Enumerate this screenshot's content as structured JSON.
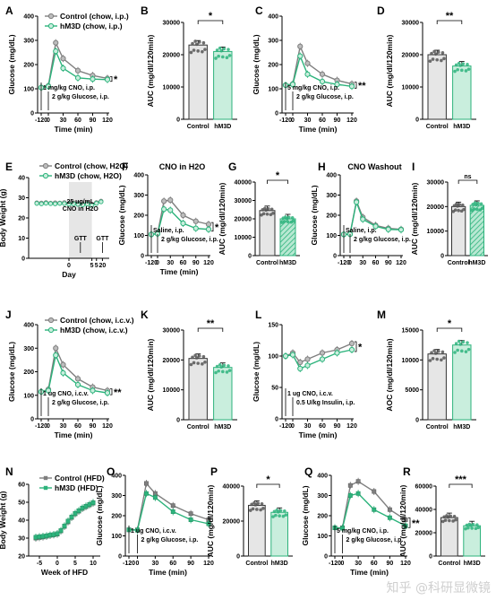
{
  "colors": {
    "control": "#7f7f7f",
    "hm3d": "#2db37c",
    "hatch_light": "#b8e8d2",
    "shade": "#e6e6e6"
  },
  "watermark": "知乎 @科研显微镜",
  "chart_data": [
    {
      "panel": "A",
      "type": "line",
      "x": [
        -120,
        0,
        15,
        30,
        60,
        90,
        120
      ],
      "series": [
        {
          "name": "Control (chow, i.p.)",
          "values": [
            105,
            112,
            290,
            225,
            175,
            155,
            143
          ]
        },
        {
          "name": "hM3D (chow, i.p.)",
          "values": [
            105,
            110,
            255,
            185,
            145,
            140,
            138
          ]
        }
      ],
      "ylim": [
        0,
        400
      ],
      "yticks": [
        0,
        100,
        200,
        300,
        400
      ],
      "xticks": [
        -120,
        0,
        30,
        60,
        90,
        120
      ],
      "xlabel": "Time (min)",
      "ylabel": "Glucose (mg/dL)",
      "annotations": [
        "1 mg/kg CNO, i.p.",
        "2 g/kg Glucose, i.p."
      ],
      "significance": "*"
    },
    {
      "panel": "B",
      "type": "bar",
      "categories": [
        "Control",
        "hM3D"
      ],
      "values": [
        23000,
        21000
      ],
      "ylim": [
        0,
        30000
      ],
      "yticks": [
        0,
        10000,
        20000,
        30000
      ],
      "ylabel": "AUC (mg/dl/120min)",
      "significance": "*"
    },
    {
      "panel": "C",
      "type": "line",
      "x": [
        -120,
        0,
        15,
        30,
        60,
        90,
        120
      ],
      "series": [
        {
          "name": "Control",
          "values": [
            115,
            120,
            275,
            205,
            160,
            135,
            120
          ]
        },
        {
          "name": "hM3D",
          "values": [
            115,
            118,
            235,
            160,
            130,
            118,
            110
          ]
        }
      ],
      "ylim": [
        0,
        400
      ],
      "yticks": [
        0,
        100,
        200,
        300,
        400
      ],
      "xticks": [
        -120,
        0,
        30,
        60,
        90,
        120
      ],
      "xlabel": "Time (min)",
      "ylabel": "Glucose (mg/dL)",
      "annotations": [
        "5 mg/kg CNO, i.p.",
        "2 g/kg Glucose, i.p."
      ],
      "significance": "**"
    },
    {
      "panel": "D",
      "type": "bar",
      "categories": [
        "Control",
        "hM3D"
      ],
      "values": [
        20000,
        16500
      ],
      "ylim": [
        0,
        30000
      ],
      "yticks": [
        0,
        10000,
        20000,
        30000
      ],
      "ylabel": "AUC (mg/dl/120min)",
      "significance": "**"
    },
    {
      "panel": "E",
      "type": "line",
      "x": [
        -7,
        -6,
        -5,
        -4,
        -3,
        -2,
        -1,
        0,
        1,
        2,
        3,
        4,
        5,
        6,
        7
      ],
      "x_tick_labels": [
        "0",
        "5",
        "5",
        "20"
      ],
      "series": [
        {
          "name": "Control (chow, H2O)",
          "values": [
            27.5,
            27.4,
            27.6,
            27.3,
            27.5,
            27.4,
            27.6,
            27.3,
            27.5,
            27.2,
            27.0,
            27.4,
            26.8,
            27.6,
            28.3
          ]
        },
        {
          "name": "hM3D (chow, H2O)",
          "values": [
            27.2,
            27.0,
            27.3,
            27.1,
            27.0,
            27.2,
            27.1,
            26.8,
            27.0,
            26.7,
            26.5,
            26.9,
            26.3,
            27.2,
            28.0
          ]
        }
      ],
      "ylim": [
        0,
        40
      ],
      "yticks": [
        0,
        10,
        20,
        30,
        40
      ],
      "xlabel": "Day",
      "ylabel": "Body Weight (g)",
      "annotations": [
        "25 ug/mL",
        "CNO in H2O",
        "GTT",
        "GTT"
      ]
    },
    {
      "panel": "F",
      "type": "line",
      "title": "CNO in H2O",
      "x": [
        -120,
        0,
        15,
        30,
        60,
        90,
        120
      ],
      "series": [
        {
          "name": "Control",
          "values": [
            105,
            110,
            270,
            275,
            200,
            170,
            155
          ]
        },
        {
          "name": "hM3D",
          "values": [
            105,
            108,
            230,
            225,
            160,
            135,
            130
          ]
        }
      ],
      "ylim": [
        0,
        400
      ],
      "yticks": [
        0,
        100,
        200,
        300,
        400
      ],
      "xticks": [
        -120,
        0,
        30,
        60,
        90,
        120
      ],
      "xlabel": "Time (min)",
      "ylabel": "Glucose (mg/dL)",
      "annotations": [
        "Saline, i.p.",
        "2 g/kg Glucose, i.p."
      ],
      "significance": "*"
    },
    {
      "panel": "G",
      "type": "bar",
      "categories": [
        "Control",
        "hM3D"
      ],
      "values": [
        24500,
        20000
      ],
      "ylim": [
        0,
        40000
      ],
      "yticks": [
        0,
        10000,
        20000,
        30000,
        40000
      ],
      "ylabel": "AUC (mg/dl/120min)",
      "significance": "*"
    },
    {
      "panel": "H",
      "type": "line",
      "title": "CNO Washout",
      "x": [
        -120,
        0,
        15,
        30,
        60,
        90,
        120
      ],
      "series": [
        {
          "name": "Control",
          "values": [
            105,
            108,
            270,
            190,
            150,
            135,
            130
          ]
        },
        {
          "name": "hM3D",
          "values": [
            105,
            106,
            265,
            180,
            145,
            130,
            128
          ]
        }
      ],
      "ylim": [
        0,
        400
      ],
      "yticks": [
        0,
        100,
        200,
        300,
        400
      ],
      "xticks": [
        -120,
        0,
        30,
        60,
        90,
        120
      ],
      "xlabel": "",
      "ylabel": "Glucose (mg/dL)",
      "annotations": [
        "Saline, i.p.",
        "2 g/kg Glucose, i.p."
      ]
    },
    {
      "panel": "I",
      "type": "bar",
      "categories": [
        "Control",
        "hM3D"
      ],
      "values": [
        20000,
        20500
      ],
      "ylim": [
        0,
        30000
      ],
      "yticks": [
        0,
        10000,
        20000,
        30000
      ],
      "ylabel": "AUC (mg/dl/120min)",
      "significance": "ns"
    },
    {
      "panel": "J",
      "type": "line",
      "x": [
        -120,
        0,
        15,
        30,
        60,
        90,
        120
      ],
      "series": [
        {
          "name": "Control (chow, i.c.v.)",
          "values": [
            115,
            125,
            300,
            230,
            170,
            135,
            120
          ]
        },
        {
          "name": "hM3D (chow, i.c.v.)",
          "values": [
            115,
            120,
            270,
            195,
            145,
            120,
            110
          ]
        }
      ],
      "ylim": [
        0,
        400
      ],
      "yticks": [
        0,
        100,
        200,
        300,
        400
      ],
      "xticks": [
        -120,
        0,
        30,
        60,
        90,
        120
      ],
      "xlabel": "Time (min)",
      "ylabel": "Glucose (mg/dL)",
      "annotations": [
        "1 ug CNO, i.c.v.",
        "2 g/kg Glucose, i.p."
      ],
      "significance": "**"
    },
    {
      "panel": "K",
      "type": "bar",
      "categories": [
        "Control",
        "hM3D"
      ],
      "values": [
        20500,
        17500
      ],
      "ylim": [
        0,
        30000
      ],
      "yticks": [
        0,
        10000,
        20000,
        30000
      ],
      "ylabel": "AUC (mg/dl/120min)",
      "significance": "**"
    },
    {
      "panel": "L",
      "type": "line",
      "x": [
        -120,
        0,
        15,
        30,
        60,
        90,
        120
      ],
      "series": [
        {
          "name": "Control",
          "values": [
            100,
            105,
            90,
            95,
            105,
            110,
            120
          ]
        },
        {
          "name": "hM3D",
          "values": [
            100,
            102,
            80,
            85,
            95,
            105,
            110
          ]
        }
      ],
      "ylim": [
        0,
        150
      ],
      "yticks": [
        0,
        50,
        100,
        150
      ],
      "xticks": [
        -120,
        0,
        30,
        60,
        90,
        120
      ],
      "xlabel": "Time (min)",
      "ylabel": "Glucose (mg/dL)",
      "annotations": [
        "1 ug CNO, i.c.v.",
        "0.5 U/kg Insulin, i.p."
      ],
      "significance": "*"
    },
    {
      "panel": "M",
      "type": "bar",
      "categories": [
        "Control",
        "hM3D"
      ],
      "values": [
        11000,
        12500
      ],
      "ylim": [
        0,
        15000
      ],
      "yticks": [
        0,
        5000,
        10000,
        15000
      ],
      "ylabel": "AOC (mg/dl/120min)",
      "significance": "*"
    },
    {
      "panel": "N",
      "type": "line",
      "x": [
        -6,
        -5,
        -4,
        -3,
        -2,
        -1,
        0,
        1,
        2,
        3,
        4,
        5,
        6,
        7,
        8,
        9,
        10
      ],
      "series": [
        {
          "name": "Control (HFD)",
          "values": [
            30.0,
            30.3,
            30.6,
            31.0,
            31.5,
            31.8,
            32.2,
            34.0,
            36.5,
            39.0,
            41.5,
            43.5,
            45.0,
            46.5,
            47.5,
            48.5,
            49.5
          ]
        },
        {
          "name": "hM3D (HFD)",
          "values": [
            30.5,
            30.8,
            31.0,
            31.3,
            31.7,
            32.0,
            32.5,
            34.2,
            36.8,
            39.5,
            41.8,
            43.8,
            45.3,
            46.8,
            47.8,
            48.8,
            49.8
          ]
        }
      ],
      "ylim": [
        20,
        60
      ],
      "yticks": [
        20,
        30,
        40,
        50,
        60
      ],
      "xticks": [
        -5,
        0,
        5,
        10
      ],
      "xlabel": "Week of HFD",
      "ylabel": "Body Weight (g)"
    },
    {
      "panel": "O",
      "type": "line",
      "x": [
        -120,
        0,
        15,
        30,
        60,
        90,
        120
      ],
      "series": [
        {
          "name": "Control",
          "values": [
            130,
            130,
            360,
            310,
            250,
            210,
            180
          ]
        },
        {
          "name": "hM3D",
          "values": [
            130,
            128,
            310,
            290,
            220,
            180,
            160
          ]
        }
      ],
      "ylim": [
        0,
        400
      ],
      "yticks": [
        0,
        100,
        200,
        300,
        400
      ],
      "xticks": [
        -120,
        0,
        30,
        60,
        90,
        120
      ],
      "xlabel": "Time (min)",
      "ylabel": "Glucose (mg/dL)",
      "annotations": [
        "1 ug CNO, i.c.v.",
        "2 g/kg Glucose, i.p."
      ]
    },
    {
      "panel": "P",
      "type": "bar",
      "categories": [
        "Control",
        "hM3D"
      ],
      "values": [
        29000,
        25000
      ],
      "ylim": [
        0,
        40000
      ],
      "yticks": [
        0,
        20000,
        40000
      ],
      "ylabel": "AUC (mg/dl/120min)",
      "significance": "*"
    },
    {
      "panel": "Q",
      "type": "line",
      "x": [
        -120,
        0,
        15,
        30,
        60,
        90,
        120
      ],
      "series": [
        {
          "name": "Control",
          "values": [
            140,
            140,
            350,
            370,
            320,
            230,
            180
          ]
        },
        {
          "name": "hM3D",
          "values": [
            140,
            138,
            300,
            310,
            230,
            190,
            150
          ]
        }
      ],
      "ylim": [
        0,
        400
      ],
      "yticks": [
        0,
        100,
        200,
        300,
        400
      ],
      "xticks": [
        -120,
        0,
        30,
        60,
        90,
        120
      ],
      "xlabel": "Time (min)",
      "ylabel": "Glucose (mg/dL)",
      "annotations": [
        "5 mg/kg CNO, i.p.",
        "2 g/kg Glucose, i.p."
      ],
      "significance": "**"
    },
    {
      "panel": "R",
      "type": "bar",
      "categories": [
        "Control",
        "hM3D"
      ],
      "values": [
        33000,
        26000
      ],
      "ylim": [
        0,
        60000
      ],
      "yticks": [
        0,
        20000,
        40000,
        60000
      ],
      "ylabel": "AUC (mg/dl/120min)",
      "significance": "***"
    }
  ]
}
